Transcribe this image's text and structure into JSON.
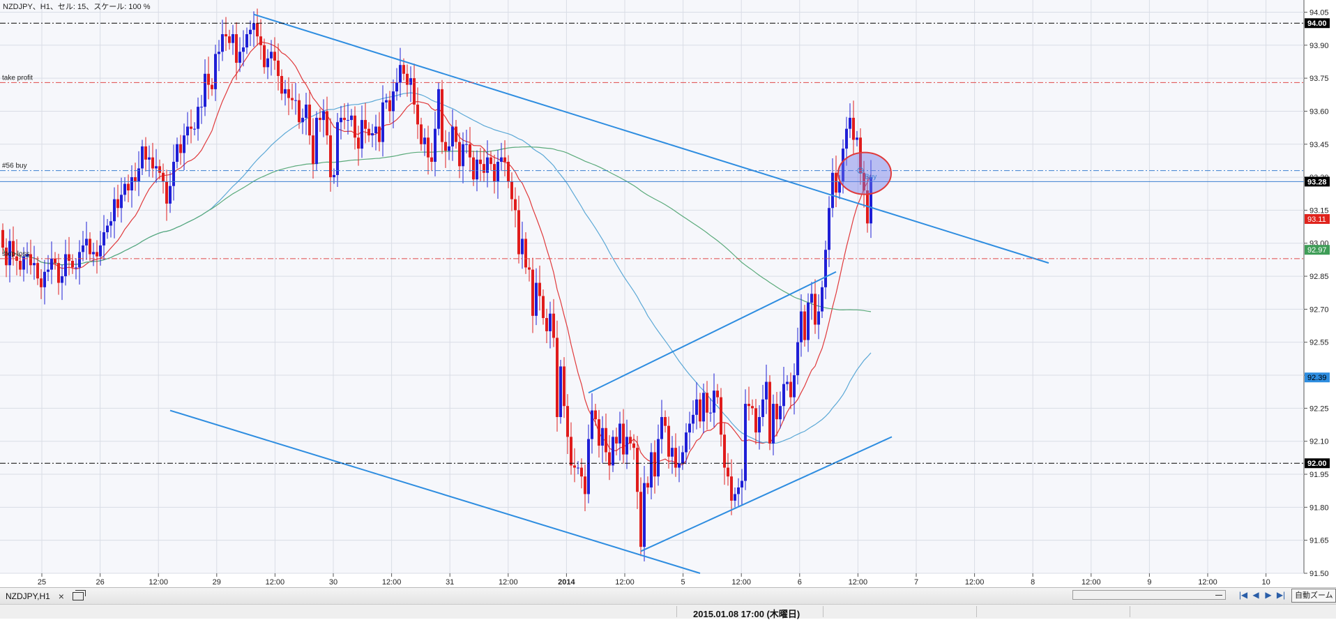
{
  "chart_header": "NZDJPY、H1、セル: 15、スケール: 100 %",
  "colors": {
    "bull_candle": "#1f1fd6",
    "bear_candle": "#e01c1c",
    "trendline": "#2e8de0",
    "ma_fast": "#e0393b",
    "ma_mid": "#5ba8d6",
    "ma_slow": "#5aaa7a",
    "grid": "#d9dde6",
    "plot_bg": "#f6f7fb"
  },
  "chart_data": {
    "type": "candlestick",
    "symbol": "NZDJPY",
    "timeframe": "H1",
    "ylim": [
      91.5,
      94.08
    ],
    "price_ticks": [
      "94.05",
      "93.90",
      "93.75",
      "93.60",
      "93.45",
      "93.30",
      "93.15",
      "93.00",
      "92.85",
      "92.70",
      "92.55",
      "92.40",
      "92.25",
      "92.10",
      "91.95",
      "91.80",
      "91.65",
      "91.50"
    ],
    "time_labels": [
      "25",
      "26",
      "12:00",
      "29",
      "12:00",
      "30",
      "12:00",
      "31",
      "12:00",
      "2014",
      "12:00",
      "5",
      "12:00",
      "6",
      "12:00",
      "7",
      "12:00",
      "8",
      "12:00",
      "9",
      "12:00",
      "10"
    ],
    "horizontal_levels": [
      {
        "price": 94.0,
        "label": "",
        "badge": "94.00",
        "style": "dashdot",
        "color": "#000000"
      },
      {
        "price": 93.73,
        "label": "take profit",
        "badge": "",
        "style": "dashdot",
        "color": "#e04848"
      },
      {
        "price": 93.33,
        "label": "#56 buy",
        "badge": "",
        "style": "dashdot",
        "color": "#3a7fd0"
      },
      {
        "price": 93.28,
        "label": "",
        "badge": "93.28",
        "style": "solid",
        "color": "#3a7fd0"
      },
      {
        "price": 92.93,
        "label": "stop loss",
        "badge": "",
        "style": "dashdot",
        "color": "#e04848"
      },
      {
        "price": 92.0,
        "label": "",
        "badge": "92.00",
        "style": "dashdot",
        "color": "#000000"
      }
    ],
    "price_badges": [
      {
        "value": "93.11",
        "price": 93.11,
        "bg": "#e0231c",
        "fg": "#ffffff"
      },
      {
        "value": "92.97",
        "price": 92.97,
        "bg": "#3e9d57",
        "fg": "#ffffff"
      },
      {
        "value": "92.39",
        "price": 92.39,
        "bg": "#2e8de0",
        "fg": "#000000"
      }
    ],
    "trade_marker": {
      "label": "Buy",
      "price": 93.33
    },
    "trendlines": [
      {
        "x1_bar": 72,
        "y1": 94.04,
        "x2_bar": 300,
        "y2": 92.91
      },
      {
        "x1_bar": 48,
        "y1": 92.24,
        "x2_bar": 200,
        "y2": 91.5
      },
      {
        "x1_bar": 168,
        "y1": 92.32,
        "x2_bar": 239,
        "y2": 92.87
      },
      {
        "x1_bar": 183,
        "y1": 91.6,
        "x2_bar": 255,
        "y2": 92.12
      }
    ],
    "candles": {
      "bar_spacing": 5.0,
      "first_bar_x": 4,
      "opens": [
        93.06,
        92.98,
        92.9,
        93.01,
        92.94,
        92.92,
        92.88,
        92.94,
        92.95,
        92.9,
        92.91,
        92.84,
        92.8,
        92.87,
        92.88,
        92.93,
        92.91,
        92.82,
        92.85,
        92.95,
        92.92,
        92.89,
        92.89,
        92.96,
        92.99,
        93.02,
        92.95,
        92.96,
        92.94,
        92.99,
        93.05,
        93.08,
        93.1,
        93.2,
        93.16,
        93.22,
        93.27,
        93.24,
        93.3,
        93.28,
        93.34,
        93.44,
        93.38,
        93.39,
        93.34,
        93.35,
        93.32,
        93.28,
        93.18,
        93.26,
        93.37,
        93.45,
        93.41,
        93.49,
        93.53,
        93.52,
        93.52,
        93.62,
        93.62,
        93.77,
        93.72,
        93.7,
        93.86,
        93.87,
        93.95,
        93.94,
        93.91,
        93.95,
        93.82,
        93.87,
        93.89,
        93.95,
        93.97,
        94.0,
        93.94,
        93.9,
        93.8,
        93.84,
        93.87,
        93.83,
        93.76,
        93.68,
        93.7,
        93.66,
        93.65,
        93.65,
        93.55,
        93.57,
        93.63,
        93.49,
        93.36,
        93.57,
        93.56,
        93.6,
        93.49,
        93.3,
        93.31,
        93.55,
        93.57,
        93.56,
        93.56,
        93.58,
        93.48,
        93.43,
        93.56,
        93.52,
        93.49,
        93.5,
        93.53,
        93.46,
        93.64,
        93.65,
        93.6,
        93.69,
        93.73,
        93.81,
        93.77,
        93.72,
        93.75,
        93.63,
        93.54,
        93.45,
        93.48,
        93.39,
        93.37,
        93.52,
        93.7,
        93.46,
        93.42,
        93.44,
        93.53,
        93.46,
        93.35,
        93.45,
        93.45,
        93.39,
        93.29,
        93.38,
        93.36,
        93.32,
        93.39,
        93.36,
        93.28,
        93.37,
        93.39,
        93.37,
        93.28,
        93.2,
        93.15,
        92.95,
        93.02,
        92.89,
        92.88,
        92.67,
        92.82,
        92.76,
        92.66,
        92.6,
        92.68,
        92.57,
        92.21,
        92.44,
        92.26,
        92.12,
        91.99,
        91.98,
        91.98,
        91.94,
        91.86,
        92.11,
        92.24,
        92.2,
        92.08,
        92.16,
        92.05,
        91.99,
        92.12,
        92.09,
        92.18,
        92.04,
        92.12,
        92.09,
        92.07,
        91.87,
        91.62,
        91.91,
        91.89,
        92.05,
        91.94,
        92.11,
        92.21,
        92.17,
        92.03,
        92.07,
        91.98,
        92.0,
        92.05,
        92.14,
        92.18,
        92.22,
        92.29,
        92.19,
        92.32,
        92.23,
        92.23,
        92.33,
        92.3,
        92.13,
        91.98,
        91.94,
        91.83,
        91.86,
        91.89,
        91.92,
        92.27,
        92.26,
        92.25,
        92.14,
        92.21,
        92.29,
        92.37,
        92.09,
        92.27,
        92.2,
        92.26,
        92.36,
        92.37,
        92.3,
        92.4,
        92.55,
        92.69,
        92.56,
        92.73,
        92.77,
        92.63,
        92.69,
        92.8,
        92.97,
        93.16,
        93.32,
        93.23,
        93.28,
        93.43,
        93.52,
        93.57,
        93.47,
        93.48,
        93.32,
        93.24,
        93.09
      ],
      "closes": [
        92.98,
        92.9,
        93.01,
        92.94,
        92.92,
        92.88,
        92.94,
        92.95,
        92.9,
        92.91,
        92.84,
        92.8,
        92.87,
        92.88,
        92.93,
        92.91,
        92.82,
        92.85,
        92.95,
        92.92,
        92.89,
        92.89,
        92.96,
        92.99,
        93.02,
        92.95,
        92.96,
        92.94,
        92.99,
        93.05,
        93.08,
        93.1,
        93.2,
        93.16,
        93.22,
        93.27,
        93.24,
        93.3,
        93.28,
        93.34,
        93.44,
        93.38,
        93.39,
        93.34,
        93.35,
        93.32,
        93.28,
        93.18,
        93.26,
        93.37,
        93.45,
        93.41,
        93.49,
        93.53,
        93.52,
        93.52,
        93.62,
        93.62,
        93.77,
        93.72,
        93.7,
        93.86,
        93.87,
        93.95,
        93.94,
        93.91,
        93.95,
        93.82,
        93.87,
        93.89,
        93.95,
        93.97,
        94.0,
        93.94,
        93.9,
        93.8,
        93.84,
        93.87,
        93.83,
        93.76,
        93.68,
        93.7,
        93.66,
        93.65,
        93.65,
        93.55,
        93.57,
        93.63,
        93.49,
        93.36,
        93.57,
        93.56,
        93.6,
        93.49,
        93.3,
        93.31,
        93.55,
        93.57,
        93.56,
        93.56,
        93.58,
        93.48,
        93.43,
        93.56,
        93.52,
        93.49,
        93.5,
        93.53,
        93.46,
        93.64,
        93.65,
        93.6,
        93.69,
        93.73,
        93.81,
        93.77,
        93.72,
        93.75,
        93.63,
        93.54,
        93.45,
        93.48,
        93.39,
        93.37,
        93.52,
        93.7,
        93.46,
        93.42,
        93.44,
        93.53,
        93.46,
        93.35,
        93.45,
        93.45,
        93.39,
        93.29,
        93.38,
        93.36,
        93.32,
        93.39,
        93.36,
        93.28,
        93.37,
        93.39,
        93.37,
        93.28,
        93.2,
        93.15,
        92.95,
        93.02,
        92.89,
        92.88,
        92.67,
        92.82,
        92.76,
        92.66,
        92.6,
        92.68,
        92.57,
        92.21,
        92.44,
        92.26,
        92.12,
        91.99,
        91.98,
        91.98,
        91.94,
        91.86,
        92.11,
        92.24,
        92.2,
        92.08,
        92.16,
        92.05,
        91.99,
        92.12,
        92.09,
        92.18,
        92.04,
        92.12,
        92.09,
        92.07,
        91.87,
        91.62,
        91.91,
        91.89,
        92.05,
        91.94,
        92.11,
        92.21,
        92.17,
        92.03,
        92.07,
        91.98,
        92.0,
        92.05,
        92.14,
        92.18,
        92.22,
        92.29,
        92.19,
        92.32,
        92.23,
        92.23,
        92.33,
        92.3,
        92.13,
        91.98,
        91.94,
        91.83,
        91.86,
        91.89,
        91.92,
        92.27,
        92.26,
        92.25,
        92.14,
        92.21,
        92.29,
        92.37,
        92.09,
        92.27,
        92.2,
        92.26,
        92.36,
        92.37,
        92.3,
        92.4,
        92.55,
        92.69,
        92.56,
        92.73,
        92.77,
        92.63,
        92.69,
        92.8,
        92.97,
        93.16,
        93.32,
        93.23,
        93.28,
        93.43,
        93.52,
        93.57,
        93.47,
        93.48,
        93.32,
        93.24,
        93.09,
        93.3
      ]
    }
  },
  "tab": {
    "label": "NZDJPY,H1",
    "close_glyph": "×"
  },
  "zoom_button_label": "自動ズーム",
  "status_date": "2015.01.08 17:00 (木曜日)",
  "nav_glyphs": {
    "first": "|◀",
    "prev": "◀",
    "next": "▶",
    "last": "▶|"
  }
}
